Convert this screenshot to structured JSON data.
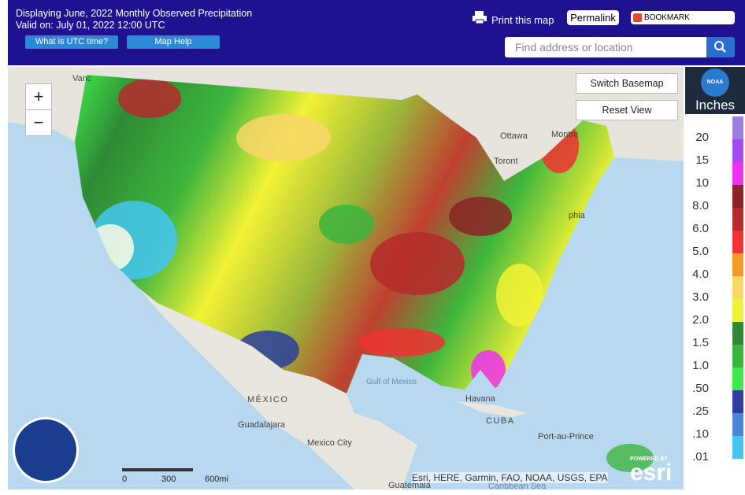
{
  "header": {
    "title": "Displaying June, 2022 Monthly Observed Precipitation",
    "valid": "Valid on: July 01, 2022 12:00 UTC",
    "buttons": [
      "What is UTC time?",
      "Map Help"
    ],
    "print": "Print this map",
    "permalink": "Permalink",
    "bookmark": "BOOKMARK",
    "search_placeholder": "Find address or location"
  },
  "map": {
    "zoom_in": "+",
    "zoom_out": "−",
    "switch_basemap": "Switch Basemap",
    "reset_view": "Reset View",
    "labels": [
      {
        "text": "Vanc"
      },
      {
        "text": "Ottawa"
      },
      {
        "text": "Montre"
      },
      {
        "text": "Toront"
      },
      {
        "text": "phia"
      },
      {
        "text": "Gulf of Mexico"
      },
      {
        "text": "MÉXICO"
      },
      {
        "text": "Guadalajara"
      },
      {
        "text": "Mexico City"
      },
      {
        "text": "Havana"
      },
      {
        "text": "CUBA"
      },
      {
        "text": "Port-au-Prince"
      },
      {
        "text": "Guatemala"
      },
      {
        "text": "Caribbean Sea"
      }
    ],
    "scale": [
      "0",
      "300",
      "600mi"
    ],
    "attribution": "Esri, HERE, Garmin, FAO, NOAA, USGS, EPA",
    "powered_by": "POWERED BY",
    "esri": "esri",
    "help": "?"
  },
  "legend": {
    "logo": "NOAA",
    "title": "Inches",
    "items": [
      {
        "label": "20",
        "color": "#9b7ee0"
      },
      {
        "label": "15",
        "color": "#a24cf0"
      },
      {
        "label": "10",
        "color": "#f030f0"
      },
      {
        "label": "8.0",
        "color": "#8b2525"
      },
      {
        "label": "6.0",
        "color": "#b52a2a"
      },
      {
        "label": "5.0",
        "color": "#f03232"
      },
      {
        "label": "4.0",
        "color": "#f09a28"
      },
      {
        "label": "3.0",
        "color": "#f8d668"
      },
      {
        "label": "2.0",
        "color": "#f2f235"
      },
      {
        "label": "1.5",
        "color": "#2f8a35"
      },
      {
        "label": "1.0",
        "color": "#3db53d"
      },
      {
        "label": ".50",
        "color": "#3fe84a"
      },
      {
        "label": ".25",
        "color": "#2d3ea0"
      },
      {
        "label": ".10",
        "color": "#4a86d6"
      },
      {
        "label": ".01",
        "color": "#45c6f2"
      }
    ]
  }
}
